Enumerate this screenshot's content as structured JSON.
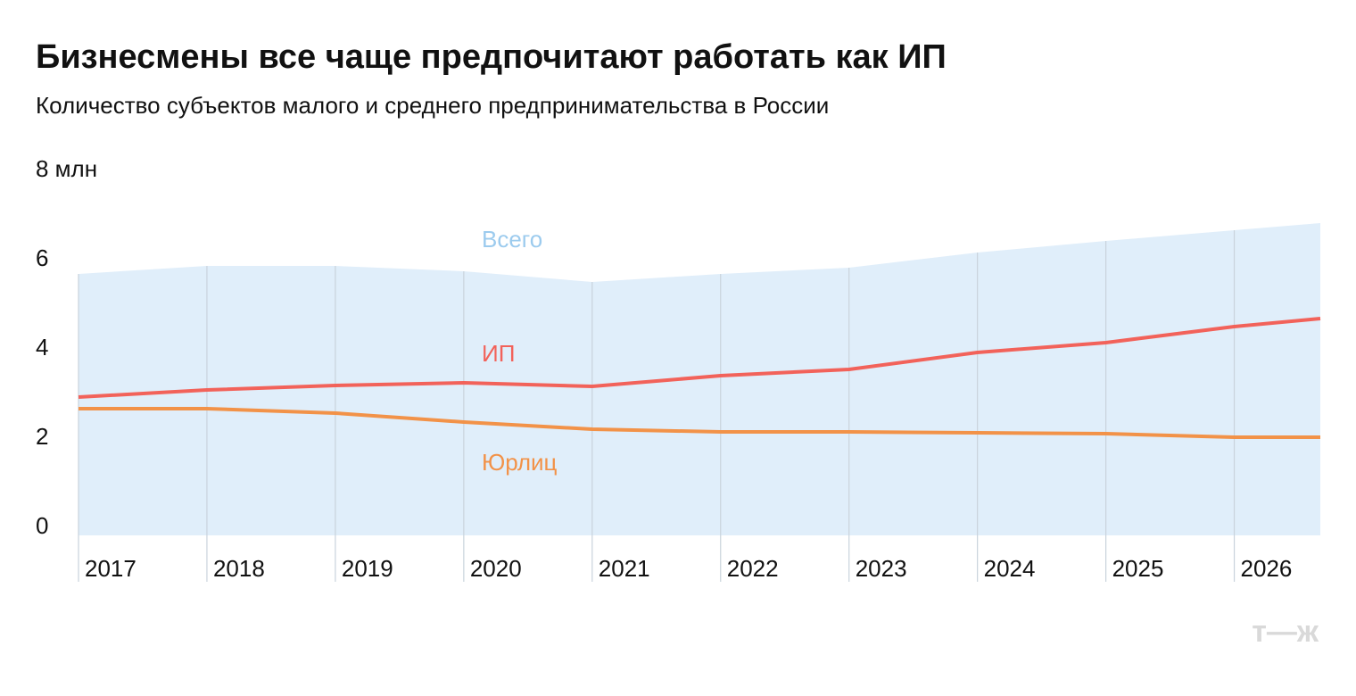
{
  "chart_data": {
    "type": "line",
    "title": "Бизнесмены все чаще предпочитают работать как ИП",
    "subtitle": "Количество субъектов малого и среднего предпринимательства в России",
    "x": [
      2017,
      2018,
      2019,
      2020,
      2021,
      2022,
      2023,
      2024,
      2025,
      2026,
      2026.67
    ],
    "series": [
      {
        "name": "Всего",
        "color": "#e0eefa",
        "label_color": "#9ccbee",
        "style": "area",
        "values": [
          5.86,
          6.04,
          6.04,
          5.92,
          5.68,
          5.86,
          6.0,
          6.34,
          6.6,
          6.84,
          7.0
        ]
      },
      {
        "name": "ИП",
        "color": "#f2625a",
        "values": [
          3.1,
          3.26,
          3.36,
          3.42,
          3.34,
          3.58,
          3.72,
          4.1,
          4.32,
          4.68,
          4.86
        ]
      },
      {
        "name": "Юрлиц",
        "color": "#f29248",
        "values": [
          2.84,
          2.84,
          2.74,
          2.54,
          2.38,
          2.32,
          2.32,
          2.3,
          2.28,
          2.2,
          2.2
        ]
      }
    ],
    "xlim": [
      2017,
      2026.67
    ],
    "xticks": [
      2017,
      2018,
      2019,
      2020,
      2021,
      2022,
      2023,
      2024,
      2025,
      2026
    ],
    "ylim": [
      0,
      8
    ],
    "yticks": [
      0,
      2,
      4,
      6,
      {
        "value": 8,
        "label": "8 млн"
      }
    ],
    "grid": true,
    "logo": "т—ж"
  }
}
